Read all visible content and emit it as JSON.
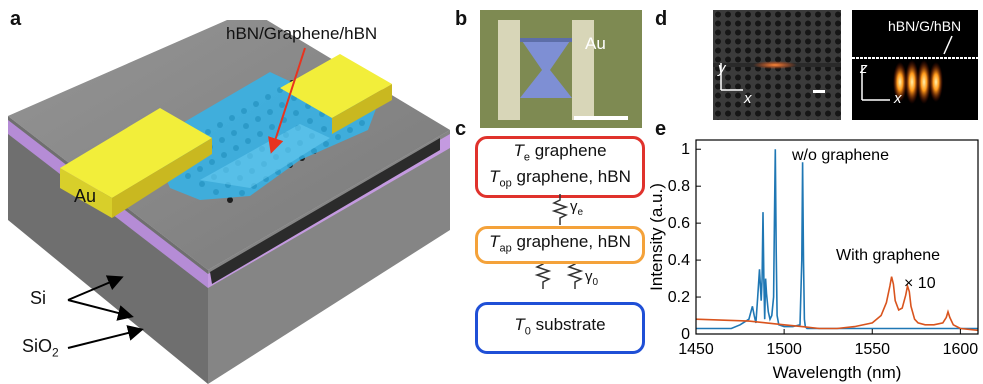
{
  "panels": {
    "a": {
      "letter": "a",
      "label_hbn_graphene": "hBN/Graphene/hBN",
      "label_au": "Au",
      "label_si": "Si",
      "label_sio2_main": "SiO",
      "label_sio2_sub": "2"
    },
    "b": {
      "letter": "b",
      "label_au": "Au"
    },
    "c": {
      "letter": "c",
      "box1_line1_sym": "T",
      "box1_line1_sub": "e",
      "box1_line1_rest": " graphene",
      "box1_line2_sym": "T",
      "box1_line2_sub": "op",
      "box1_line2_rest": " graphene, hBN",
      "gamma_e_sym": "γ",
      "gamma_e_sub": "e",
      "box2_sym": "T",
      "box2_sub": "ap",
      "box2_rest": " graphene, hBN",
      "gamma_0_sym": "γ",
      "gamma_0_sub": "0",
      "box3_sym": "T",
      "box3_sub": "0",
      "box3_rest": " substrate",
      "colors": {
        "box1": "#e0322c",
        "box2": "#f4a23a",
        "box3": "#1f4fd6"
      }
    },
    "d": {
      "letter": "d",
      "left_axis_y": "y",
      "left_axis_x": "x",
      "right_label": "hBN/G/hBN",
      "right_axis_z": "z",
      "right_axis_x": "x"
    },
    "e": {
      "letter": "e"
    }
  },
  "chart_data": {
    "type": "line",
    "xlabel": "Wavelength (nm)",
    "ylabel": "Intensity (a.u.)",
    "xlim": [
      1450,
      1610
    ],
    "ylim": [
      0,
      1.05
    ],
    "xticks": [
      1450,
      1500,
      1550,
      1600
    ],
    "yticks": [
      0,
      0.2,
      0.4,
      0.6,
      0.8,
      1
    ],
    "ytick_labels": [
      "0",
      "0.2",
      "0.4",
      "0.6",
      "0.8",
      "1"
    ],
    "annotations": {
      "wo": "w/o graphene",
      "with": "With graphene",
      "scale": "× 10"
    },
    "series": [
      {
        "color": "#1f77b4",
        "x": [
          1450,
          1470,
          1475,
          1480,
          1482,
          1483,
          1484,
          1485,
          1486,
          1487,
          1487.5,
          1488,
          1488.5,
          1489,
          1489.5,
          1490,
          1491,
          1492,
          1493,
          1494,
          1494.5,
          1495,
          1495.5,
          1496,
          1497,
          1500,
          1505,
          1509,
          1510,
          1510.5,
          1511,
          1511.5,
          1512,
          1513,
          1520,
          1540,
          1560,
          1580,
          1600,
          1610
        ],
        "y": [
          0.03,
          0.03,
          0.05,
          0.08,
          0.15,
          0.1,
          0.06,
          0.2,
          0.35,
          0.18,
          0.3,
          0.66,
          0.28,
          0.08,
          0.3,
          0.22,
          0.12,
          0.08,
          0.1,
          0.2,
          0.6,
          1.0,
          0.45,
          0.1,
          0.05,
          0.04,
          0.04,
          0.05,
          0.4,
          0.93,
          0.4,
          0.08,
          0.04,
          0.03,
          0.03,
          0.03,
          0.03,
          0.03,
          0.03,
          0.03
        ]
      },
      {
        "color": "#d9541e",
        "x": [
          1450,
          1480,
          1490,
          1500,
          1510,
          1520,
          1530,
          1540,
          1550,
          1555,
          1558,
          1560,
          1561,
          1562,
          1563,
          1565,
          1567,
          1569,
          1570,
          1571,
          1572,
          1574,
          1576,
          1580,
          1585,
          1590,
          1592,
          1593,
          1594,
          1596,
          1600,
          1610
        ],
        "y": [
          0.08,
          0.07,
          0.06,
          0.05,
          0.04,
          0.03,
          0.03,
          0.04,
          0.06,
          0.1,
          0.17,
          0.26,
          0.31,
          0.27,
          0.18,
          0.13,
          0.14,
          0.21,
          0.26,
          0.23,
          0.15,
          0.08,
          0.06,
          0.05,
          0.05,
          0.06,
          0.09,
          0.12,
          0.09,
          0.05,
          0.03,
          0.02
        ]
      }
    ]
  }
}
